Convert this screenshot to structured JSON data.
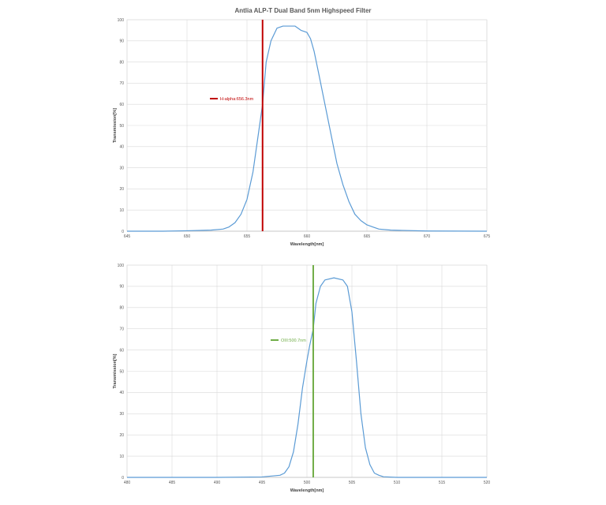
{
  "title": "Antlia ALP-T Dual Band 5nm Highspeed Filter",
  "colors": {
    "curve": "#5b9bd5",
    "grid": "#d9d9d9",
    "halpha_marker": "#c00000",
    "oiii_marker": "#70ad47",
    "tick_text": "#595959"
  },
  "chart_data": [
    {
      "type": "line",
      "xlabel": "Wavelength[nm]",
      "ylabel": "Transmission[%]",
      "xlim": [
        645,
        675
      ],
      "ylim": [
        0,
        100
      ],
      "x_ticks": [
        645,
        650,
        655,
        660,
        665,
        670,
        675
      ],
      "y_ticks": [
        0,
        10,
        20,
        30,
        40,
        50,
        60,
        70,
        80,
        90,
        100
      ],
      "grid": true,
      "series": [
        {
          "x": [
            645,
            648,
            650,
            652,
            653,
            653.5,
            654,
            654.5,
            655,
            655.5,
            656,
            656.3,
            656.6,
            657,
            657.5,
            658,
            658.5,
            659,
            659.5,
            660,
            660.3,
            660.6,
            661,
            661.5,
            662,
            662.5,
            663,
            663.5,
            664,
            664.5,
            665,
            665.5,
            666,
            667,
            670,
            675
          ],
          "y": [
            0,
            0,
            0.2,
            0.5,
            1,
            2,
            4,
            8,
            15,
            28,
            48,
            60,
            80,
            90,
            96,
            97,
            97,
            97,
            95,
            94,
            91,
            85,
            74,
            60,
            46,
            32,
            22,
            14,
            8,
            5,
            3,
            2,
            1,
            0.5,
            0.1,
            0
          ]
        }
      ],
      "marker": {
        "label": "H-alpha:656.3nm",
        "x": 656.3
      }
    },
    {
      "type": "line",
      "xlabel": "Wavelength[nm]",
      "ylabel": "Transmission[%]",
      "xlim": [
        480,
        520
      ],
      "ylim": [
        0,
        100
      ],
      "x_ticks": [
        480,
        485,
        490,
        495,
        500,
        505,
        510,
        515,
        520
      ],
      "y_ticks": [
        0,
        10,
        20,
        30,
        40,
        50,
        60,
        70,
        80,
        90,
        100
      ],
      "grid": true,
      "series": [
        {
          "x": [
            480,
            490,
            495,
            497,
            497.5,
            498,
            498.5,
            499,
            499.5,
            500,
            500.3,
            500.7,
            501,
            501.5,
            502,
            503,
            504,
            504.5,
            505,
            505.5,
            506,
            506.5,
            507,
            507.5,
            508,
            508.5,
            510,
            520
          ],
          "y": [
            0,
            0,
            0.2,
            1,
            2,
            5,
            12,
            25,
            42,
            55,
            62,
            70,
            82,
            90,
            93,
            94,
            93,
            90,
            78,
            55,
            30,
            14,
            6,
            2,
            1,
            0.3,
            0,
            0
          ]
        }
      ],
      "marker": {
        "label": "OIII:500.7nm",
        "x": 500.7
      }
    }
  ]
}
